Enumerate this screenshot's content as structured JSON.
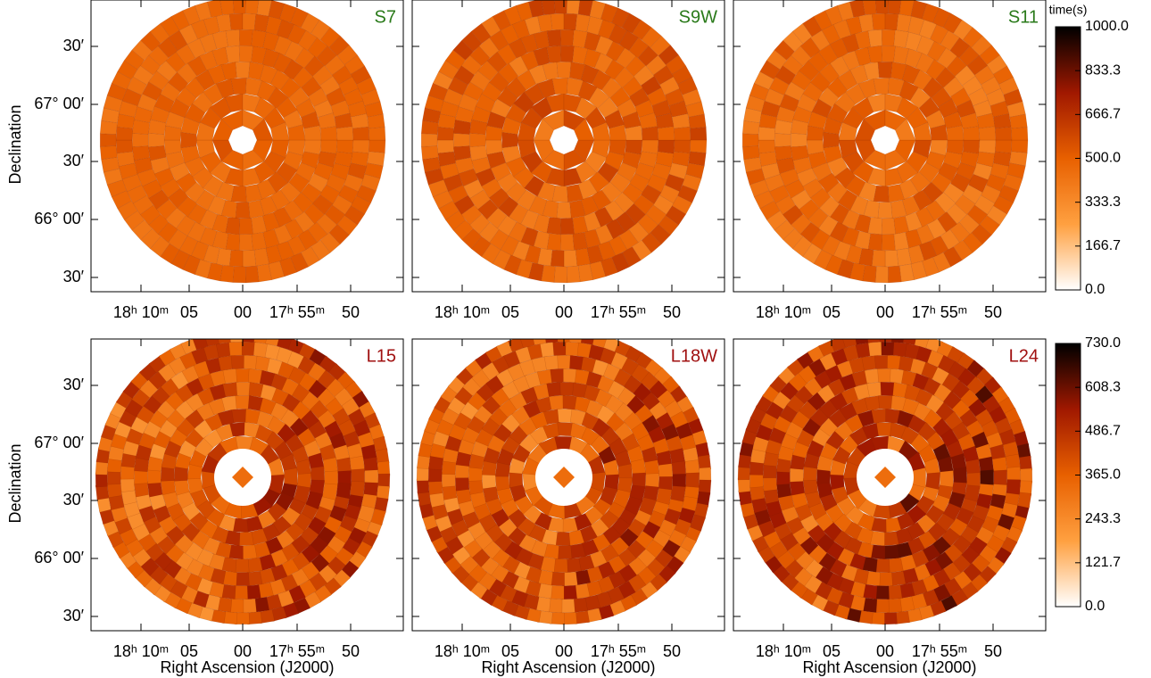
{
  "chart_data": [
    {
      "type": "map",
      "label": "S7",
      "label_color": "#2a7a1a",
      "ylabel": "Declination",
      "xtick_labels": [
        "18ʰ 10ᵐ",
        "05",
        "00",
        "17ʰ 55ᵐ",
        "50"
      ],
      "ytick_labels": [
        "30′",
        "67° 00′",
        "30′",
        "66° 00′",
        "30′"
      ]
    },
    {
      "type": "map",
      "label": "S9W",
      "label_color": "#2a7a1a",
      "xtick_labels": [
        "18ʰ 10ᵐ",
        "05",
        "00",
        "17ʰ 55ᵐ",
        "50"
      ]
    },
    {
      "type": "map",
      "label": "S11",
      "label_color": "#2a7a1a",
      "xtick_labels": [
        "18ʰ 10ᵐ",
        "05",
        "00",
        "17ʰ 55ᵐ",
        "50"
      ]
    },
    {
      "type": "map",
      "label": "L15",
      "label_color": "#a01010",
      "ylabel": "Declination",
      "xlabel": "Right Ascension (J2000)",
      "xtick_labels": [
        "18ʰ 10ᵐ",
        "05",
        "00",
        "17ʰ 55ᵐ",
        "50"
      ],
      "ytick_labels": [
        "30′",
        "67° 00′",
        "30′",
        "66° 00′",
        "30′"
      ]
    },
    {
      "type": "map",
      "label": "L18W",
      "label_color": "#a01010",
      "xlabel": "Right Ascension (J2000)",
      "xtick_labels": [
        "18ʰ 10ᵐ",
        "05",
        "00",
        "17ʰ 55ᵐ",
        "50"
      ]
    },
    {
      "type": "map",
      "label": "L24",
      "label_color": "#a01010",
      "xlabel": "Right Ascension (J2000)",
      "xtick_labels": [
        "18ʰ 10ᵐ",
        "05",
        "00",
        "17ʰ 55ᵐ",
        "50"
      ]
    },
    {
      "type": "colorbar",
      "title": "time(s)",
      "ylim": [
        0,
        1000
      ],
      "yticks": [
        {
          "value": 0,
          "label": "0.0"
        },
        166.7,
        333.3,
        {
          "value": 500,
          "label": "500.0"
        },
        666.7,
        833.3,
        {
          "value": 1000,
          "label": "1000.0"
        }
      ],
      "colors": [
        "#ffffff",
        "#ffa040",
        "#e86000",
        "#a01800",
        "#000000"
      ]
    },
    {
      "type": "colorbar",
      "ylim": [
        0,
        730
      ],
      "yticks": [
        {
          "value": 0,
          "label": "0.0"
        },
        121.7,
        243.3,
        {
          "value": 365,
          "label": "365.0"
        },
        486.7,
        608.3,
        {
          "value": 730,
          "label": "730.0"
        }
      ],
      "colors": [
        "#ffffff",
        "#ffa040",
        "#e86000",
        "#a01800",
        "#000000"
      ]
    }
  ]
}
